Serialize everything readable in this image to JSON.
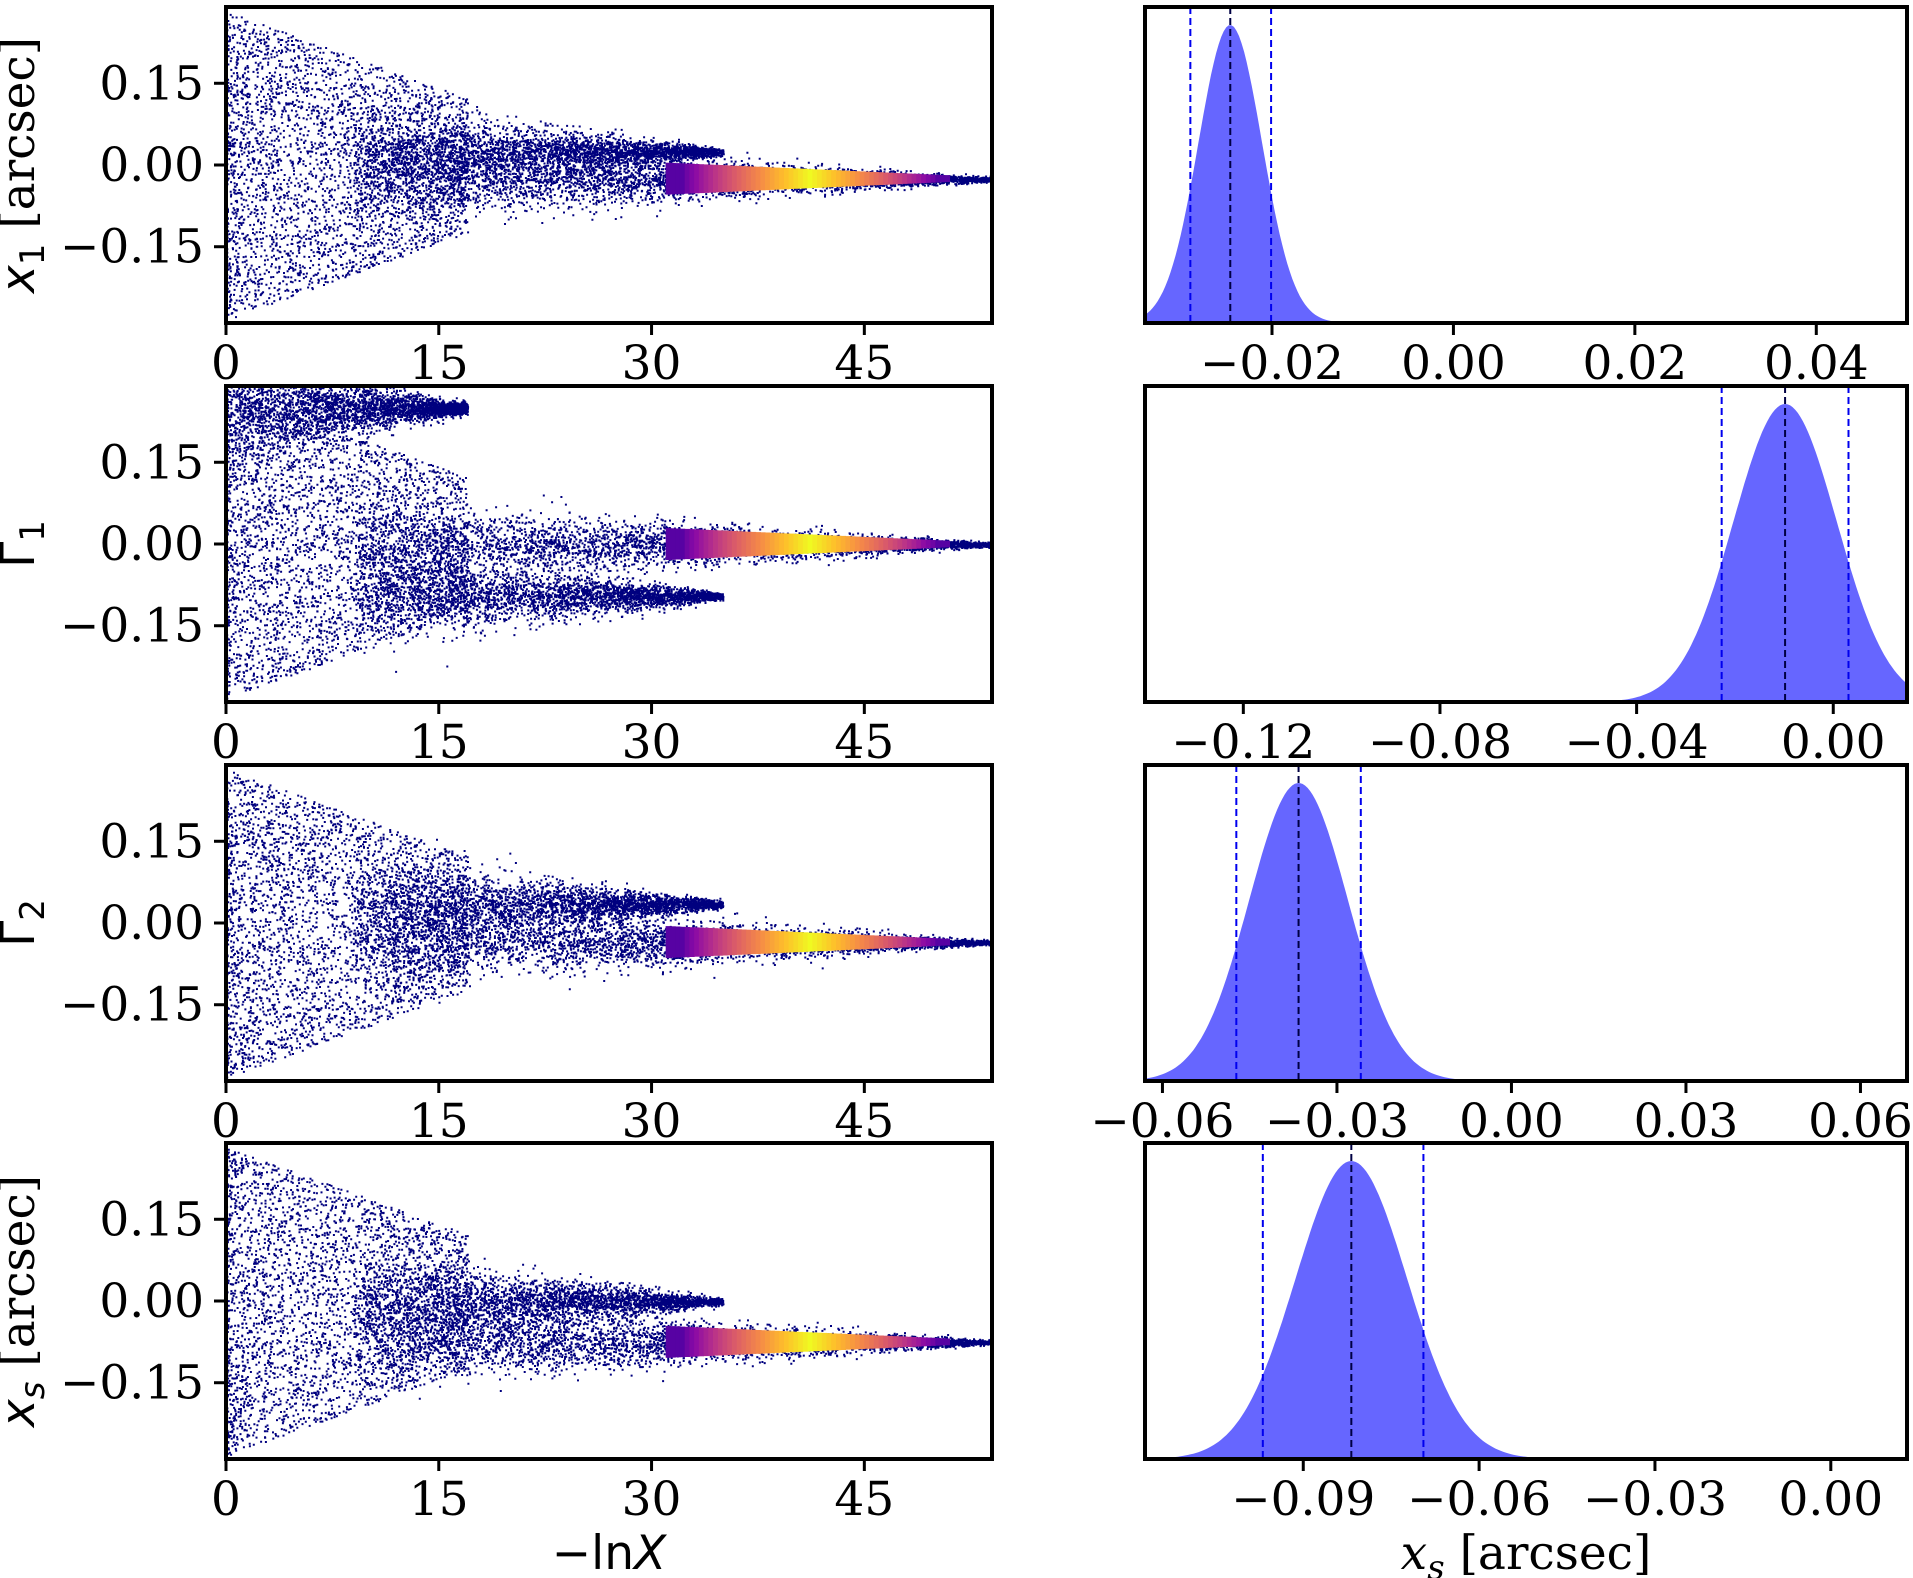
{
  "chart_data": [
    {
      "type": "scatter",
      "panel": "trace-x1",
      "ylabel": "x_1 [arcsec]",
      "xlim": [
        0,
        54
      ],
      "ylim": [
        -0.29,
        0.29
      ],
      "xticks": [
        "0",
        "15",
        "30",
        "45"
      ],
      "yticks": [
        "0.15",
        "0.00",
        "−0.15"
      ],
      "colormap": "plasma",
      "marker_color": "#00007f",
      "branches": [
        {
          "name": "",
          "y_center": 0.025,
          "x_range": [
            15,
            35
          ]
        },
        {
          "name": "",
          "y_center": -0.025,
          "x_range": [
            15,
            54
          ],
          "bright_x": [
            36,
            46
          ]
        }
      ]
    },
    {
      "type": "area",
      "panel": "posterior-x1",
      "xlim": [
        -0.034,
        0.05
      ],
      "xticks": [
        "−0.02",
        "0.00",
        "0.02",
        "0.04"
      ],
      "peak": -0.0246,
      "sigma": 0.0035,
      "vlines": [
        -0.029,
        -0.0246,
        -0.0201
      ],
      "fill_color": "#6666ff"
    },
    {
      "type": "scatter",
      "panel": "trace-gamma1",
      "ylabel": "Γ_1",
      "xlim": [
        0,
        54
      ],
      "ylim": [
        -0.29,
        0.29
      ],
      "xticks": [
        "0",
        "15",
        "30",
        "45"
      ],
      "yticks": [
        "0.15",
        "0.00",
        "−0.15"
      ],
      "colormap": "plasma",
      "marker_color": "#00007f",
      "branches": [
        {
          "name": "",
          "y_center": -0.095,
          "x_range": [
            15,
            35
          ]
        },
        {
          "name": "",
          "y_center": 0.0,
          "x_range": [
            15,
            54
          ],
          "bright_x": [
            36,
            46
          ]
        },
        {
          "name": "",
          "y_center": 0.25,
          "x_range": [
            5,
            17
          ]
        }
      ]
    },
    {
      "type": "area",
      "panel": "posterior-gamma1",
      "xlim": [
        -0.14,
        0.015
      ],
      "xticks": [
        "−0.12",
        "−0.08",
        "−0.04",
        "0.00"
      ],
      "peak": -0.0098,
      "sigma": 0.0105,
      "vlines": [
        -0.0227,
        -0.0098,
        0.0031
      ],
      "fill_color": "#6666ff"
    },
    {
      "type": "scatter",
      "panel": "trace-gamma2",
      "ylabel": "Γ_2",
      "xlim": [
        0,
        54
      ],
      "ylim": [
        -0.29,
        0.29
      ],
      "xticks": [
        "0",
        "15",
        "30",
        "45"
      ],
      "yticks": [
        "0.15",
        "0.00",
        "−0.15"
      ],
      "colormap": "plasma",
      "marker_color": "#00007f",
      "branches": [
        {
          "name": "",
          "y_center": 0.035,
          "x_range": [
            15,
            35
          ]
        },
        {
          "name": "",
          "y_center": -0.035,
          "x_range": [
            15,
            54
          ],
          "bright_x": [
            36,
            46
          ]
        }
      ]
    },
    {
      "type": "area",
      "panel": "posterior-gamma2",
      "xlim": [
        -0.063,
        0.068
      ],
      "xticks": [
        "−0.06",
        "−0.03",
        "0.00",
        "0.03",
        "0.06"
      ],
      "peak": -0.0366,
      "sigma": 0.0085,
      "vlines": [
        -0.0473,
        -0.0366,
        -0.0259
      ],
      "fill_color": "#6666ff"
    },
    {
      "type": "scatter",
      "panel": "trace-xs",
      "ylabel": "x_s [arcsec]",
      "xlabel": "−lnX",
      "xlim": [
        0,
        54
      ],
      "ylim": [
        -0.29,
        0.29
      ],
      "xticks": [
        "0",
        "15",
        "30",
        "45"
      ],
      "yticks": [
        "0.15",
        "0.00",
        "−0.15"
      ],
      "colormap": "plasma",
      "marker_color": "#00007f",
      "branches": [
        {
          "name": "",
          "y_center": -0.0,
          "x_range": [
            15,
            35
          ]
        },
        {
          "name": "",
          "y_center": -0.075,
          "x_range": [
            15,
            54
          ],
          "bright_x": [
            36,
            46
          ]
        }
      ]
    },
    {
      "type": "area",
      "panel": "posterior-xs",
      "xlabel": "x_s [arcsec]",
      "xlim": [
        -0.117,
        0.013
      ],
      "xticks": [
        "−0.09",
        "−0.06",
        "−0.03",
        "0.00"
      ],
      "peak": -0.0818,
      "sigma": 0.0095,
      "vlines": [
        -0.0969,
        -0.0818,
        -0.0695
      ],
      "fill_color": "#6666ff"
    }
  ]
}
